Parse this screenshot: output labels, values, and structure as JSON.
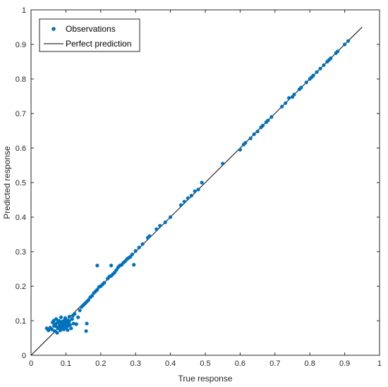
{
  "chart_data": {
    "type": "scatter",
    "title": "",
    "xlabel": "True response",
    "ylabel": "Predicted response",
    "xlim": [
      0,
      1
    ],
    "ylim": [
      0,
      1
    ],
    "xticks": [
      "0",
      "0.1",
      "0.2",
      "0.3",
      "0.4",
      "0.5",
      "0.6",
      "0.7",
      "0.8",
      "0.9",
      "1"
    ],
    "yticks": [
      "0",
      "0.1",
      "0.2",
      "0.3",
      "0.4",
      "0.5",
      "0.6",
      "0.7",
      "0.8",
      "0.9",
      "1"
    ],
    "grid": false,
    "legend_position": "top-left",
    "series": [
      {
        "name": "Observations",
        "kind": "scatter",
        "color": "#0072BD",
        "points": [
          [
            0.045,
            0.078
          ],
          [
            0.05,
            0.072
          ],
          [
            0.055,
            0.08
          ],
          [
            0.06,
            0.075
          ],
          [
            0.062,
            0.095
          ],
          [
            0.065,
            0.1
          ],
          [
            0.066,
            0.085
          ],
          [
            0.068,
            0.07
          ],
          [
            0.07,
            0.09
          ],
          [
            0.072,
            0.105
          ],
          [
            0.074,
            0.082
          ],
          [
            0.075,
            0.065
          ],
          [
            0.076,
            0.095
          ],
          [
            0.078,
            0.078
          ],
          [
            0.08,
            0.1
          ],
          [
            0.082,
            0.088
          ],
          [
            0.084,
            0.072
          ],
          [
            0.085,
            0.094
          ],
          [
            0.086,
            0.11
          ],
          [
            0.088,
            0.08
          ],
          [
            0.09,
            0.098
          ],
          [
            0.092,
            0.085
          ],
          [
            0.094,
            0.075
          ],
          [
            0.095,
            0.1
          ],
          [
            0.096,
            0.09
          ],
          [
            0.098,
            0.108
          ],
          [
            0.1,
            0.08
          ],
          [
            0.1,
            0.095
          ],
          [
            0.102,
            0.088
          ],
          [
            0.104,
            0.1
          ],
          [
            0.105,
            0.073
          ],
          [
            0.106,
            0.085
          ],
          [
            0.108,
            0.095
          ],
          [
            0.11,
            0.1
          ],
          [
            0.11,
            0.112
          ],
          [
            0.112,
            0.088
          ],
          [
            0.115,
            0.078
          ],
          [
            0.118,
            0.105
          ],
          [
            0.12,
            0.115
          ],
          [
            0.122,
            0.092
          ],
          [
            0.125,
            0.12
          ],
          [
            0.13,
            0.09
          ],
          [
            0.135,
            0.11
          ],
          [
            0.14,
            0.13
          ],
          [
            0.145,
            0.14
          ],
          [
            0.15,
            0.145
          ],
          [
            0.155,
            0.15
          ],
          [
            0.16,
            0.155
          ],
          [
            0.158,
            0.07
          ],
          [
            0.16,
            0.092
          ],
          [
            0.165,
            0.16
          ],
          [
            0.17,
            0.168
          ],
          [
            0.175,
            0.172
          ],
          [
            0.18,
            0.18
          ],
          [
            0.185,
            0.185
          ],
          [
            0.19,
            0.19
          ],
          [
            0.19,
            0.26
          ],
          [
            0.195,
            0.198
          ],
          [
            0.2,
            0.2
          ],
          [
            0.205,
            0.205
          ],
          [
            0.21,
            0.21
          ],
          [
            0.22,
            0.222
          ],
          [
            0.225,
            0.228
          ],
          [
            0.23,
            0.23
          ],
          [
            0.23,
            0.26
          ],
          [
            0.235,
            0.235
          ],
          [
            0.24,
            0.24
          ],
          [
            0.245,
            0.247
          ],
          [
            0.25,
            0.255
          ],
          [
            0.255,
            0.26
          ],
          [
            0.26,
            0.262
          ],
          [
            0.265,
            0.268
          ],
          [
            0.27,
            0.272
          ],
          [
            0.275,
            0.278
          ],
          [
            0.28,
            0.282
          ],
          [
            0.285,
            0.285
          ],
          [
            0.29,
            0.292
          ],
          [
            0.295,
            0.262
          ],
          [
            0.3,
            0.302
          ],
          [
            0.31,
            0.312
          ],
          [
            0.32,
            0.322
          ],
          [
            0.335,
            0.34
          ],
          [
            0.34,
            0.345
          ],
          [
            0.36,
            0.365
          ],
          [
            0.37,
            0.375
          ],
          [
            0.385,
            0.385
          ],
          [
            0.4,
            0.4
          ],
          [
            0.43,
            0.435
          ],
          [
            0.44,
            0.445
          ],
          [
            0.45,
            0.455
          ],
          [
            0.46,
            0.462
          ],
          [
            0.47,
            0.475
          ],
          [
            0.48,
            0.48
          ],
          [
            0.49,
            0.5
          ],
          [
            0.55,
            0.555
          ],
          [
            0.6,
            0.595
          ],
          [
            0.61,
            0.61
          ],
          [
            0.615,
            0.615
          ],
          [
            0.63,
            0.628
          ],
          [
            0.64,
            0.64
          ],
          [
            0.65,
            0.648
          ],
          [
            0.66,
            0.66
          ],
          [
            0.665,
            0.665
          ],
          [
            0.675,
            0.675
          ],
          [
            0.68,
            0.68
          ],
          [
            0.69,
            0.69
          ],
          [
            0.72,
            0.72
          ],
          [
            0.73,
            0.73
          ],
          [
            0.74,
            0.745
          ],
          [
            0.75,
            0.748
          ],
          [
            0.755,
            0.755
          ],
          [
            0.77,
            0.77
          ],
          [
            0.775,
            0.775
          ],
          [
            0.79,
            0.79
          ],
          [
            0.8,
            0.8
          ],
          [
            0.805,
            0.805
          ],
          [
            0.81,
            0.81
          ],
          [
            0.82,
            0.82
          ],
          [
            0.83,
            0.83
          ],
          [
            0.84,
            0.84
          ],
          [
            0.85,
            0.85
          ],
          [
            0.855,
            0.855
          ],
          [
            0.86,
            0.86
          ],
          [
            0.875,
            0.875
          ],
          [
            0.88,
            0.88
          ],
          [
            0.9,
            0.9
          ],
          [
            0.91,
            0.91
          ]
        ]
      },
      {
        "name": "Perfect prediction",
        "kind": "line",
        "color": "#000000",
        "points": [
          [
            0,
            0
          ],
          [
            0.95,
            0.95
          ]
        ]
      }
    ]
  }
}
